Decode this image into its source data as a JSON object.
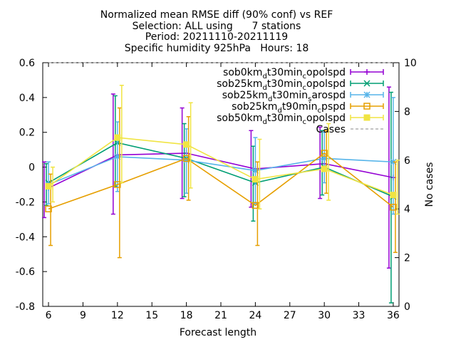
{
  "title_lines": [
    "Normalized mean RMSE diff (90% conf) vs REF",
    "Selection: ALL using      7 stations",
    "Period: 20211110-20211119",
    "Specific humidity 925hPa   Hours: 18"
  ],
  "chart_data": {
    "type": "line",
    "xlabel": "Forecast length",
    "ylabel": "",
    "y2label": "No cases",
    "xlim": [
      5.5,
      36.5
    ],
    "ylim": [
      -0.8,
      0.6
    ],
    "y2lim": [
      0,
      10
    ],
    "x_ticks": [
      6,
      9,
      12,
      15,
      18,
      21,
      24,
      27,
      30,
      33,
      36
    ],
    "y_ticks": [
      -0.8,
      -0.6,
      -0.4,
      -0.2,
      0,
      0.2,
      0.4,
      0.6
    ],
    "y_tick_labels": [
      "-0.8",
      "-0.6",
      "-0.4",
      "-0.2",
      "0",
      "0.2",
      "0.4",
      "0.6"
    ],
    "y2_ticks": [
      0,
      2,
      4,
      6,
      8,
      10
    ],
    "x": [
      6,
      12,
      18,
      24,
      30,
      36
    ],
    "legend_position": "top-right",
    "series": [
      {
        "name": "sob0km_d t30min_c opolspd",
        "name_parts": [
          "sob0km",
          "d",
          "t30min",
          "c",
          "opolspd"
        ],
        "color": "#9400d3",
        "marker": "plus",
        "values": [
          -0.12,
          0.07,
          0.08,
          -0.01,
          0.02,
          -0.06
        ],
        "err_low": [
          -0.29,
          -0.27,
          -0.18,
          -0.23,
          -0.18,
          -0.58
        ],
        "err_high": [
          0.03,
          0.42,
          0.34,
          0.21,
          0.23,
          0.46
        ]
      },
      {
        "name": "sob25km_d t30min_c opolspd",
        "name_parts": [
          "sob25km",
          "d",
          "t30min",
          "c",
          "opolspd"
        ],
        "color": "#009e73",
        "marker": "cross",
        "values": [
          -0.09,
          0.14,
          0.05,
          -0.09,
          0.0,
          -0.17
        ],
        "err_low": [
          -0.22,
          -0.11,
          -0.17,
          -0.31,
          -0.16,
          -0.78
        ],
        "err_high": [
          0.02,
          0.41,
          0.25,
          0.12,
          0.21,
          0.43
        ]
      },
      {
        "name": "sob25km_d t30min_s arospd",
        "name_parts": [
          "sob25km",
          "d",
          "t30min",
          "s",
          "arospd"
        ],
        "color": "#56b4e9",
        "marker": "star",
        "values": [
          -0.1,
          0.06,
          0.04,
          -0.02,
          0.05,
          0.03
        ],
        "err_low": [
          -0.21,
          -0.14,
          -0.15,
          -0.21,
          -0.09,
          -0.27
        ],
        "err_high": [
          0.03,
          0.26,
          0.22,
          0.17,
          0.2,
          0.4
        ]
      },
      {
        "name": "sob25km_d t90min_c pspd",
        "name_parts": [
          "sob25km",
          "d",
          "t90min",
          "c",
          "pspd"
        ],
        "color": "#e69f00",
        "marker": "box",
        "values": [
          -0.24,
          -0.1,
          0.05,
          -0.22,
          0.08,
          -0.23
        ],
        "err_low": [
          -0.45,
          -0.52,
          -0.19,
          -0.45,
          -0.15,
          -0.49
        ],
        "err_high": [
          -0.04,
          0.34,
          0.29,
          0.03,
          0.21,
          0.03
        ]
      },
      {
        "name": "sob50km_d t30min_c opolspd",
        "name_parts": [
          "sob50km",
          "d",
          "t30min",
          "c",
          "opolspd"
        ],
        "color": "#f0e442",
        "marker": "filled-box",
        "values": [
          -0.11,
          0.17,
          0.13,
          -0.07,
          -0.01,
          -0.16
        ],
        "err_low": [
          -0.2,
          -0.09,
          -0.12,
          -0.24,
          -0.19,
          -0.27
        ],
        "err_high": [
          0.0,
          0.47,
          0.37,
          0.16,
          0.25,
          0.04
        ]
      }
    ],
    "cases": {
      "name": "Cases",
      "color": "#a0a0a0",
      "values": [
        10,
        10,
        10,
        10,
        10,
        10
      ]
    }
  }
}
